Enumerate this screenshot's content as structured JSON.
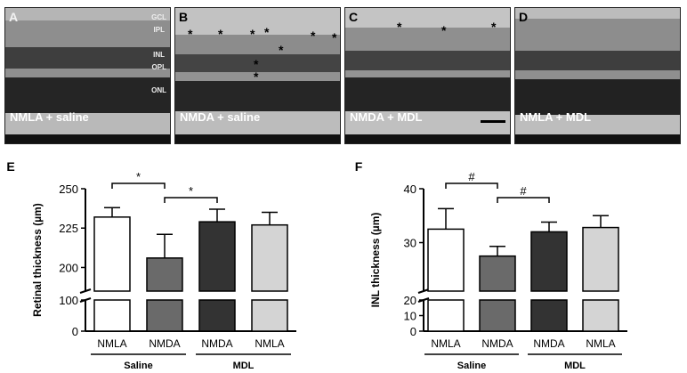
{
  "panels": [
    {
      "letter": "A",
      "condition": "NMLA + saline",
      "layers": [
        "GCL",
        "IPL",
        "INL",
        "OPL",
        "ONL"
      ],
      "star_count": 0
    },
    {
      "letter": "B",
      "condition": "NMDA + saline",
      "layers": [],
      "star_count": 9
    },
    {
      "letter": "C",
      "condition": "NMDA + MDL",
      "layers": [],
      "star_count": 3
    },
    {
      "letter": "D",
      "condition": "NMLA + MDL",
      "layers": [],
      "star_count": 0
    }
  ],
  "star_symbol": "*",
  "colors": {
    "white_bar": "#ffffff",
    "nmda_saline": "#6a6a6a",
    "nmda_mdl": "#333333",
    "nmla_mdl": "#d4d4d4",
    "stroke": "#000000"
  },
  "chart_data": [
    {
      "panel": "E",
      "type": "bar",
      "ylabel": "Retinal thickness (µm)",
      "categories": [
        "NMLA",
        "NMDA",
        "NMDA",
        "NMLA"
      ],
      "groups": [
        {
          "label": "Saline",
          "span": [
            0,
            1
          ]
        },
        {
          "label": "MDL",
          "span": [
            2,
            3
          ]
        }
      ],
      "values": [
        232,
        206,
        229,
        227
      ],
      "errors": [
        6,
        15,
        8,
        8
      ],
      "yaxis": {
        "broken": true,
        "lower_ticks": [
          0,
          100
        ],
        "upper_ticks": [
          200,
          225,
          250
        ],
        "upper_range": [
          185,
          250
        ]
      },
      "significance": [
        {
          "from": 0,
          "to": 1,
          "symbol": "*"
        },
        {
          "from": 1,
          "to": 2,
          "symbol": "*"
        }
      ]
    },
    {
      "panel": "F",
      "type": "bar",
      "ylabel": "INL thickness (µm)",
      "categories": [
        "NMLA",
        "NMDA",
        "NMDA",
        "NMLA"
      ],
      "groups": [
        {
          "label": "Saline",
          "span": [
            0,
            1
          ]
        },
        {
          "label": "MDL",
          "span": [
            2,
            3
          ]
        }
      ],
      "values": [
        32.5,
        27.5,
        32,
        32.8
      ],
      "errors": [
        3.8,
        1.8,
        1.8,
        2.2
      ],
      "yaxis": {
        "broken": true,
        "lower_ticks": [
          0,
          10,
          20
        ],
        "upper_ticks": [
          30,
          40
        ],
        "upper_range": [
          21,
          40
        ]
      },
      "significance": [
        {
          "from": 0,
          "to": 1,
          "symbol": "#"
        },
        {
          "from": 1,
          "to": 2,
          "symbol": "#"
        }
      ]
    }
  ]
}
